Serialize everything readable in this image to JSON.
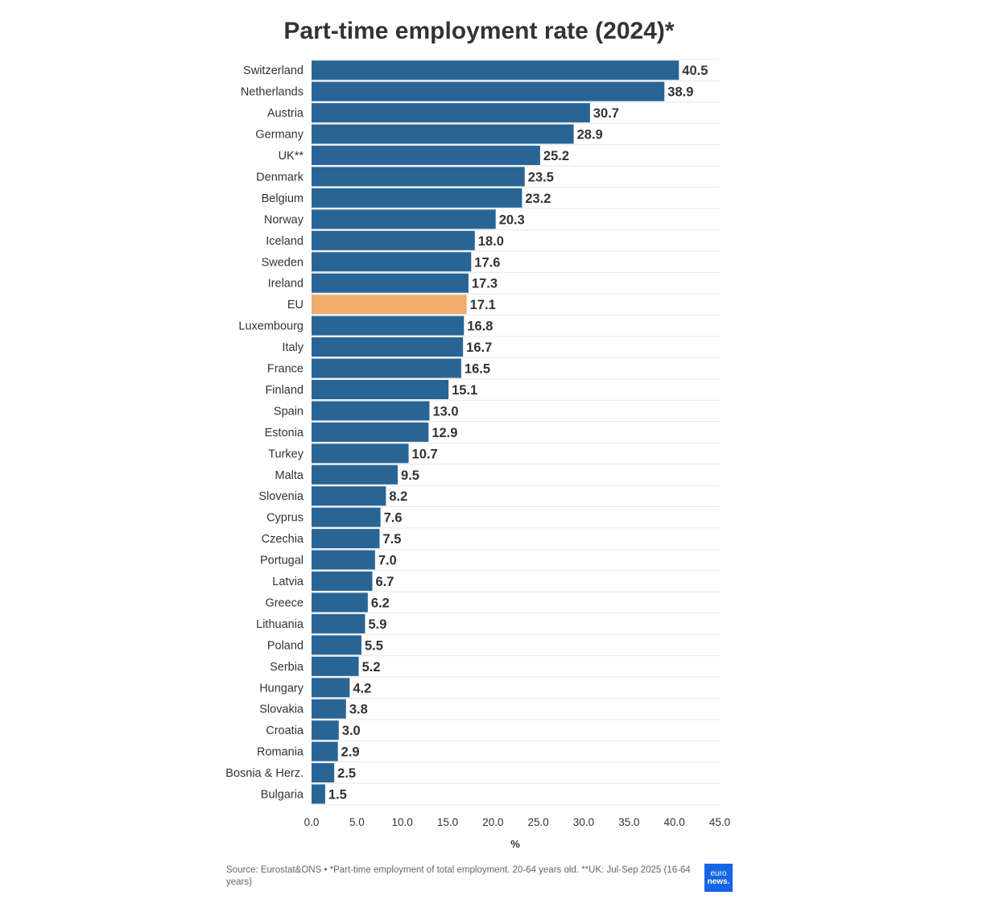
{
  "colors": {
    "bar": "#296594",
    "highlight": "#f0ad6c",
    "grid": "#e6e6e6",
    "logo_bg": "#1565e6"
  },
  "chart_data": {
    "type": "bar",
    "orientation": "horizontal",
    "title": "Part-time employment rate (2024)*",
    "xlabel": "%",
    "xlim": [
      0,
      45
    ],
    "ticks": [
      "0.0",
      "5.0",
      "10.0",
      "15.0",
      "20.0",
      "25.0",
      "30.0",
      "35.0",
      "40.0",
      "45.0"
    ],
    "grid": true,
    "highlight": "EU",
    "categories": [
      "Switzerland",
      "Netherlands",
      "Austria",
      "Germany",
      "UK**",
      "Denmark",
      "Belgium",
      "Norway",
      "Iceland",
      "Sweden",
      "Ireland",
      "EU",
      "Luxembourg",
      "Italy",
      "France",
      "Finland",
      "Spain",
      "Estonia",
      "Turkey",
      "Malta",
      "Slovenia",
      "Cyprus",
      "Czechia",
      "Portugal",
      "Latvia",
      "Greece",
      "Lithuania",
      "Poland",
      "Serbia",
      "Hungary",
      "Slovakia",
      "Croatia",
      "Romania",
      "Bosnia & Herz.",
      "Bulgaria"
    ],
    "values": [
      40.5,
      38.9,
      30.7,
      28.9,
      25.2,
      23.5,
      23.2,
      20.3,
      18.0,
      17.6,
      17.3,
      17.1,
      16.8,
      16.7,
      16.5,
      15.1,
      13.0,
      12.9,
      10.7,
      9.5,
      8.2,
      7.6,
      7.5,
      7.0,
      6.7,
      6.2,
      5.9,
      5.5,
      5.2,
      4.2,
      3.8,
      3.0,
      2.9,
      2.5,
      1.5
    ]
  },
  "footer": {
    "source": "Source: Eurostat&ONS • *Part-time employment of total employment. 20-64 years old. **UK: Jul-Sep 2025 (16-64 years)",
    "logo_line1": "euro",
    "logo_line2": "news."
  }
}
